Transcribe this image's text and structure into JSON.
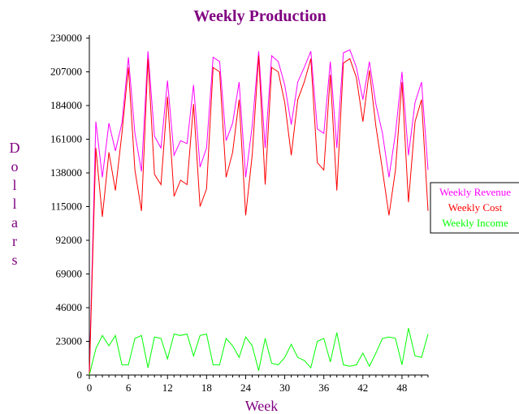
{
  "chart_data": {
    "type": "line",
    "title": "Weekly Production",
    "xlabel": "Week",
    "ylabel": "Dollars",
    "xlim": [
      0,
      52
    ],
    "ylim": [
      0,
      230000
    ],
    "x_ticks": [
      0,
      6,
      12,
      18,
      24,
      30,
      36,
      42,
      48
    ],
    "y_ticks": [
      0,
      23000,
      46000,
      69000,
      92000,
      115000,
      138000,
      161000,
      184000,
      207000,
      230000
    ],
    "legend_position": "right",
    "grid": false,
    "series": [
      {
        "name": "Weekly Revenue",
        "color": "#ff00ff",
        "x": [
          0,
          1,
          2,
          3,
          4,
          5,
          6,
          7,
          8,
          9,
          10,
          11,
          12,
          13,
          14,
          15,
          16,
          17,
          18,
          19,
          20,
          21,
          22,
          23,
          24,
          25,
          26,
          27,
          28,
          29,
          30,
          31,
          32,
          33,
          34,
          35,
          36,
          37,
          38,
          39,
          40,
          41,
          42,
          43,
          44,
          45,
          46,
          47,
          48,
          49,
          50,
          51,
          52
        ],
        "values": [
          0,
          173000,
          135000,
          172000,
          153000,
          172000,
          217000,
          165000,
          139000,
          221000,
          163000,
          155000,
          201000,
          150000,
          160000,
          158000,
          198000,
          142000,
          155000,
          217000,
          214000,
          160000,
          172000,
          200000,
          135000,
          170000,
          221000,
          155000,
          218000,
          214000,
          198000,
          171000,
          200000,
          210000,
          221000,
          168000,
          165000,
          214000,
          155000,
          220000,
          222000,
          210000,
          188000,
          214000,
          185000,
          165000,
          135000,
          165000,
          207000,
          150000,
          186000,
          200000,
          140000
        ]
      },
      {
        "name": "Weekly Cost",
        "color": "#ff0000",
        "x": [
          0,
          1,
          2,
          3,
          4,
          5,
          6,
          7,
          8,
          9,
          10,
          11,
          12,
          13,
          14,
          15,
          16,
          17,
          18,
          19,
          20,
          21,
          22,
          23,
          24,
          25,
          26,
          27,
          28,
          29,
          30,
          31,
          32,
          33,
          34,
          35,
          36,
          37,
          38,
          39,
          40,
          41,
          42,
          43,
          44,
          45,
          46,
          47,
          48,
          49,
          50,
          51,
          52
        ],
        "values": [
          0,
          155000,
          108000,
          152000,
          126000,
          165000,
          210000,
          140000,
          112000,
          216000,
          137000,
          130000,
          190000,
          122000,
          133000,
          130000,
          185000,
          115000,
          127000,
          210000,
          207000,
          135000,
          152000,
          188000,
          109000,
          150000,
          218000,
          130000,
          210000,
          207000,
          186000,
          150000,
          188000,
          200000,
          216000,
          145000,
          140000,
          205000,
          126000,
          213000,
          216000,
          203000,
          173000,
          208000,
          170000,
          140000,
          109000,
          140000,
          200000,
          118000,
          173000,
          188000,
          112000
        ]
      },
      {
        "name": "Weekly Income",
        "color": "#00ff00",
        "x": [
          0,
          1,
          2,
          3,
          4,
          5,
          6,
          7,
          8,
          9,
          10,
          11,
          12,
          13,
          14,
          15,
          16,
          17,
          18,
          19,
          20,
          21,
          22,
          23,
          24,
          25,
          26,
          27,
          28,
          29,
          30,
          31,
          32,
          33,
          34,
          35,
          36,
          37,
          38,
          39,
          40,
          41,
          42,
          43,
          44,
          45,
          46,
          47,
          48,
          49,
          50,
          51,
          52
        ],
        "values": [
          0,
          18000,
          27000,
          20000,
          27000,
          7000,
          7000,
          25000,
          27000,
          5000,
          26000,
          25000,
          11000,
          28000,
          27000,
          28000,
          13000,
          27000,
          28000,
          7000,
          7000,
          25000,
          20000,
          12000,
          26000,
          20000,
          3000,
          25000,
          8000,
          7000,
          12000,
          21000,
          12000,
          10000,
          5000,
          23000,
          25000,
          9000,
          29000,
          7000,
          6000,
          7000,
          15000,
          6000,
          15000,
          25000,
          26000,
          25000,
          7000,
          32000,
          13000,
          12000,
          28000
        ]
      }
    ]
  }
}
